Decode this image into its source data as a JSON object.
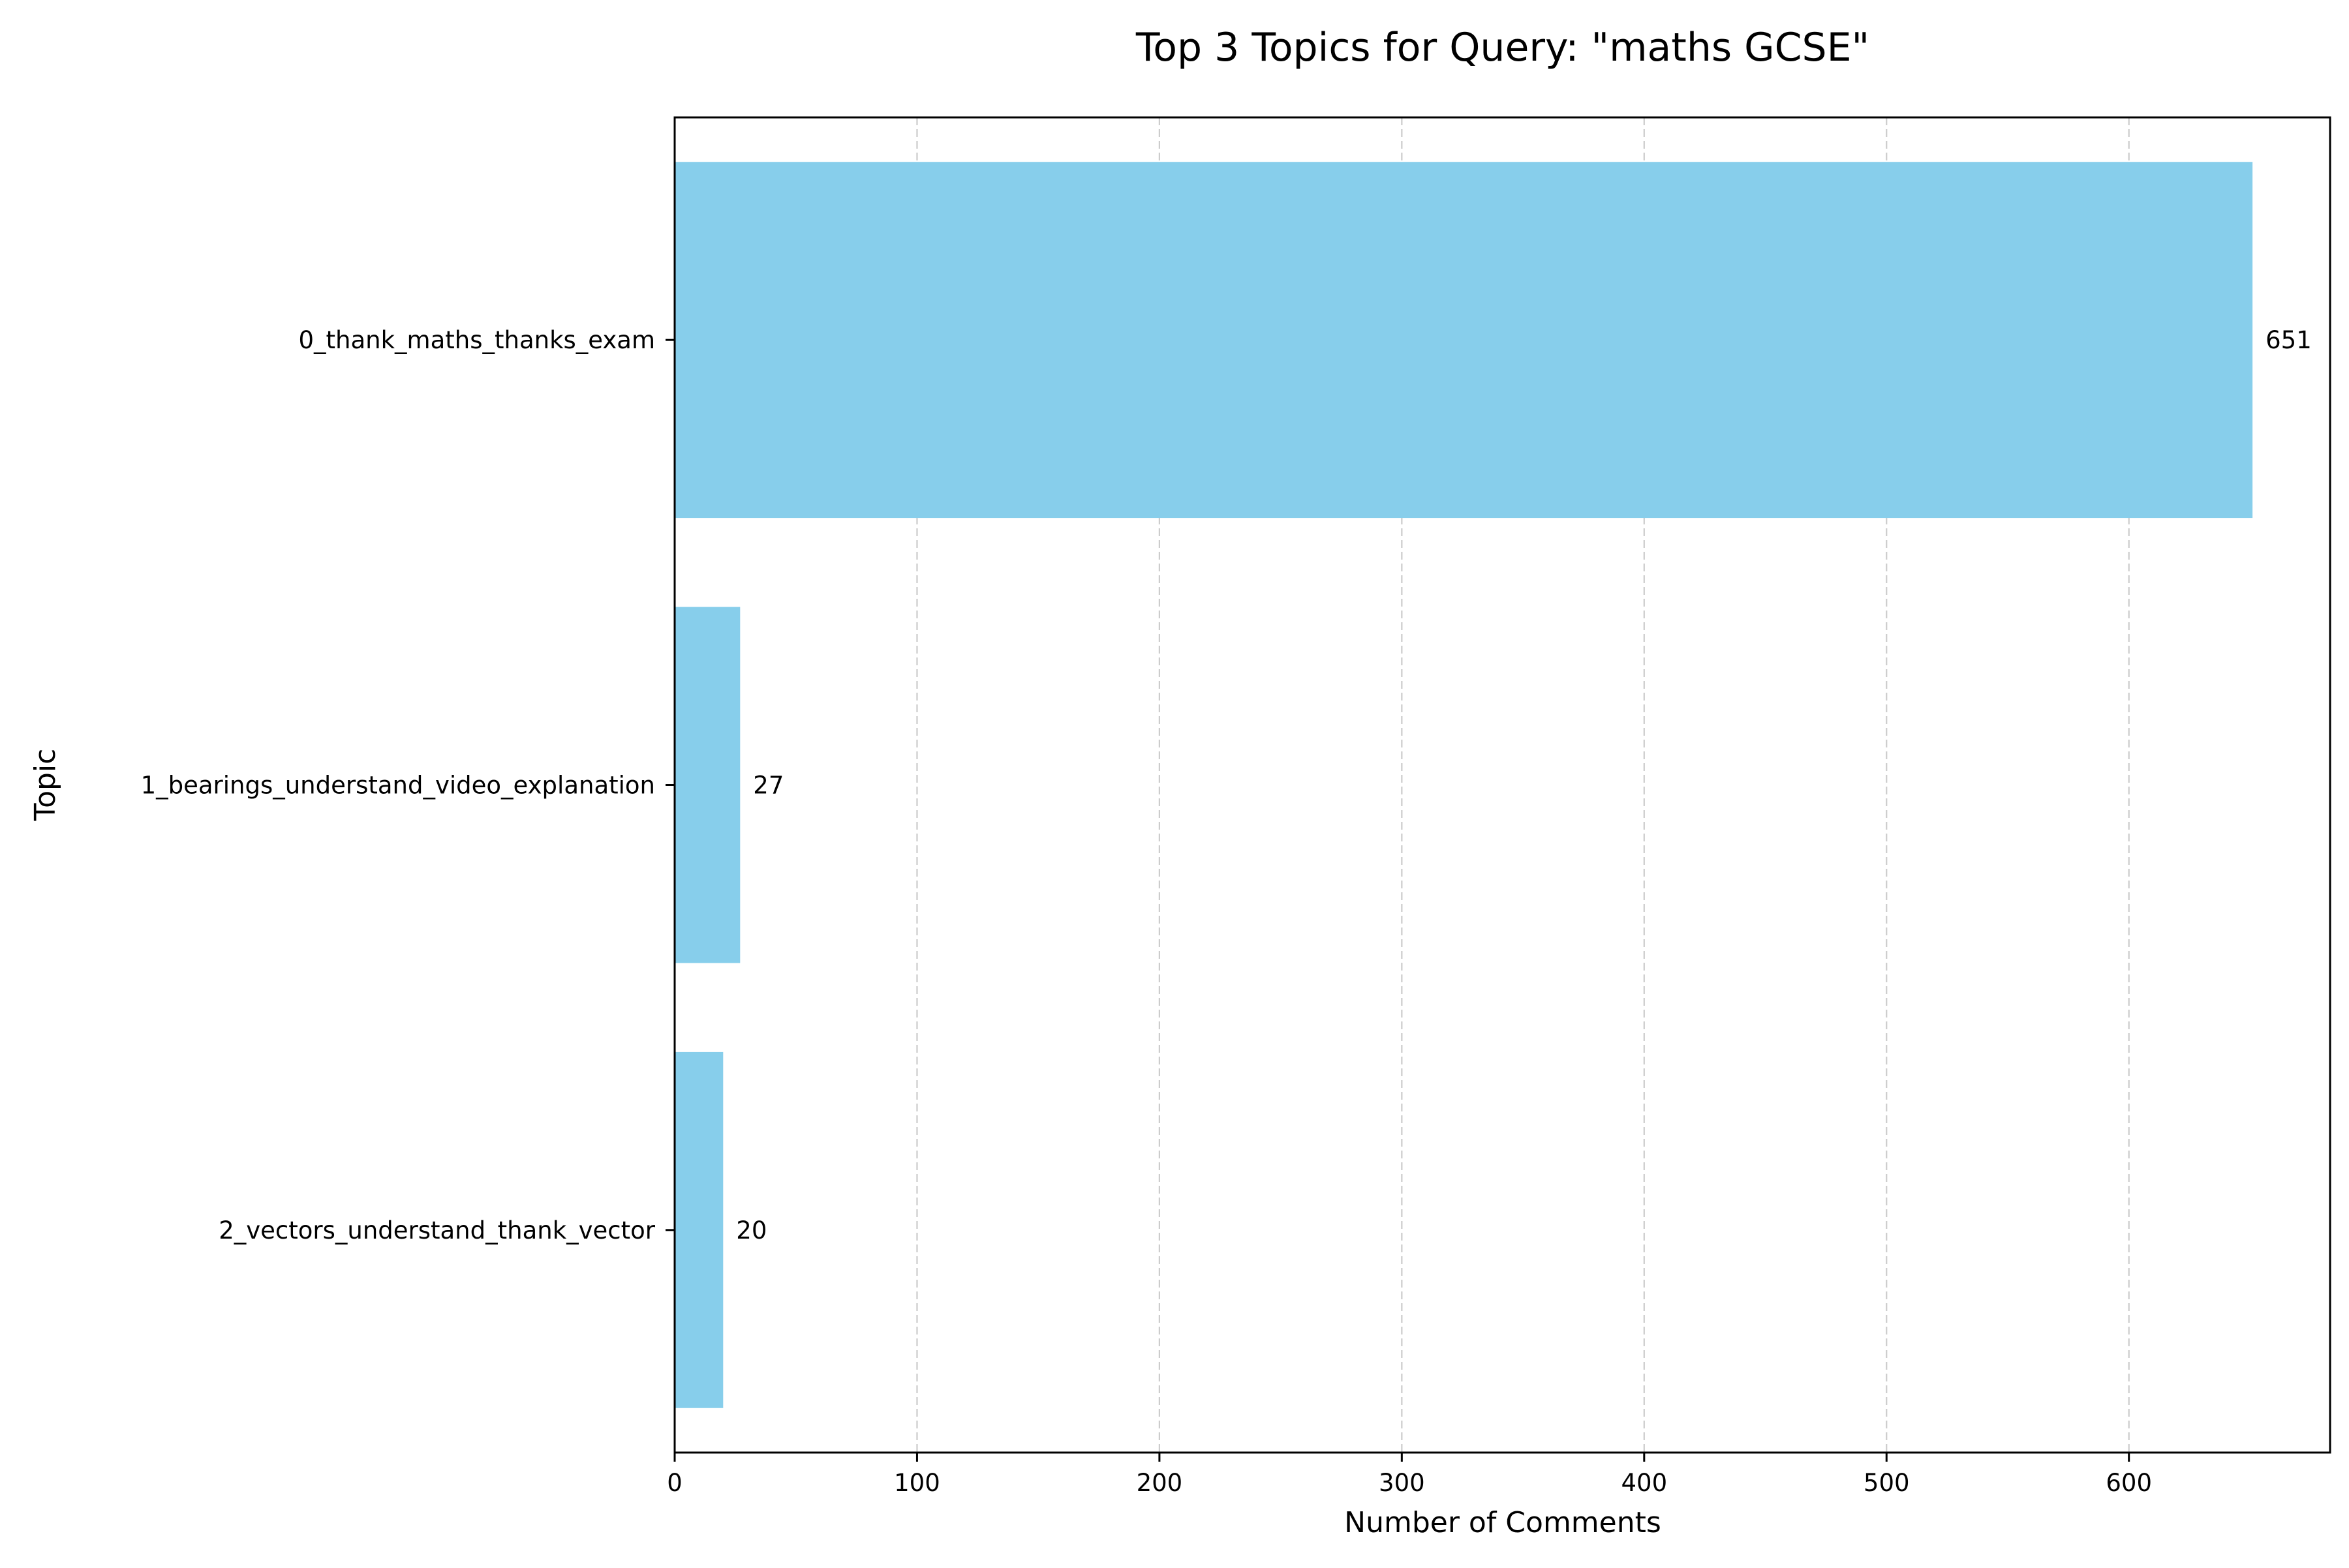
{
  "chart_data": {
    "type": "bar",
    "orientation": "horizontal",
    "title": "Top 3 Topics for Query: \"maths GCSE\"",
    "xlabel": "Number of Comments",
    "ylabel": "Topic",
    "categories": [
      "0_thank_maths_thanks_exam",
      "1_bearings_understand_video_explanation",
      "2_vectors_understand_thank_vector"
    ],
    "values": [
      651,
      27,
      20
    ],
    "data_labels": [
      "651",
      "27",
      "20"
    ],
    "xlim": [
      0,
      683
    ],
    "xticks": [
      0,
      100,
      200,
      300,
      400,
      500,
      600
    ],
    "xtick_labels": [
      "0",
      "100",
      "200",
      "300",
      "400",
      "500",
      "600"
    ],
    "grid": "x-axis dashed",
    "bar_color": "#87CEEB",
    "grid_color": "#cccccc",
    "legend": "none"
  }
}
